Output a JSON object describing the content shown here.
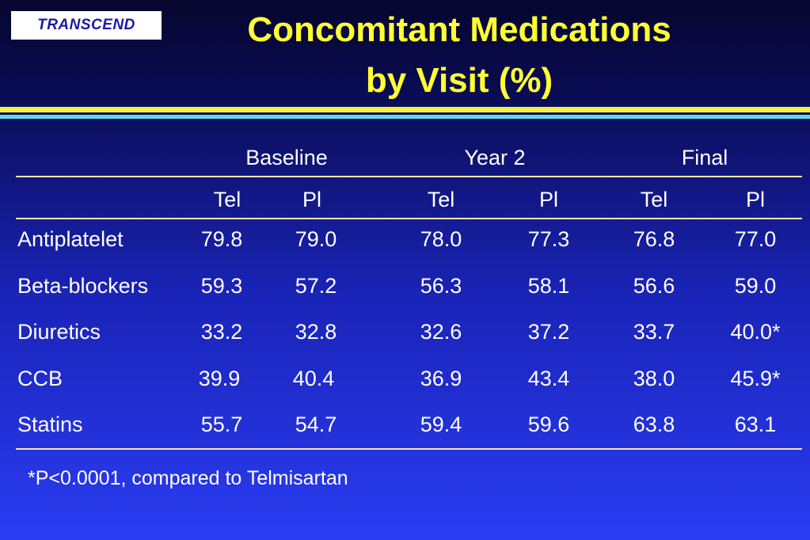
{
  "logo": {
    "text": "TRANSCEND"
  },
  "title": {
    "line1": "Concomitant Medications",
    "line2": "by Visit (%)"
  },
  "table": {
    "groups": [
      "Baseline",
      "Year 2",
      "Final"
    ],
    "subheaders": [
      "Tel",
      "Pl",
      "Tel",
      "Pl",
      "Tel",
      "Pl"
    ],
    "rows": [
      {
        "label": "Antiplatelet",
        "values": [
          "79.8",
          "79.0",
          "78.0",
          "77.3",
          "76.8",
          "77.0"
        ]
      },
      {
        "label": "Beta-blockers",
        "values": [
          "59.3",
          "57.2",
          "56.3",
          "58.1",
          "56.6",
          "59.0"
        ]
      },
      {
        "label": "Diuretics",
        "values": [
          "33.2",
          "32.8",
          "32.6",
          "37.2",
          "33.7",
          "40.0*"
        ]
      },
      {
        "label": "CCB",
        "values": [
          "39.9",
          "40.4",
          "36.9",
          "43.4",
          "38.0",
          "45.9*"
        ]
      },
      {
        "label": "Statins",
        "values": [
          "55.7",
          "54.7",
          "59.4",
          "59.6",
          "63.8",
          "63.1"
        ]
      }
    ]
  },
  "footnote": "*P<0.0001, compared to Telmisartan",
  "colors": {
    "title": "#ffff33",
    "band_yellow": "#f6f03a",
    "band_cyan": "#5fd7f0",
    "rule": "#f2e6a8"
  }
}
